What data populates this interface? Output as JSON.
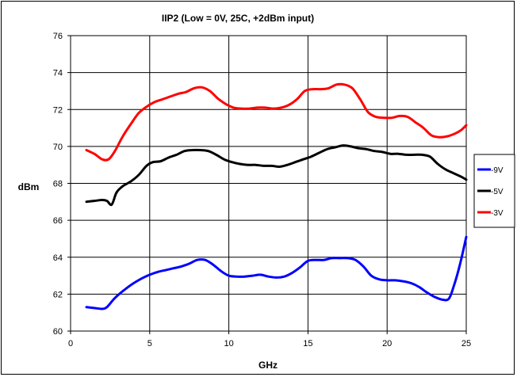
{
  "chart_data": {
    "type": "line",
    "title": "IIP2 (Low = 0V, 25C, +2dBm input)",
    "xlabel": "GHz",
    "ylabel": "dBm",
    "xlim": [
      0,
      25
    ],
    "ylim": [
      60,
      76
    ],
    "xticks": [
      0,
      5,
      10,
      15,
      20,
      25
    ],
    "yticks": [
      60,
      62,
      64,
      66,
      68,
      70,
      72,
      74,
      76
    ],
    "grid": true,
    "legend_position": "right",
    "series": [
      {
        "name": "-9V",
        "color": "#0000ff",
        "x": [
          1,
          1.5,
          2,
          2.3,
          2.7,
          3,
          3.5,
          4,
          4.5,
          5,
          5.5,
          6,
          6.5,
          7,
          7.5,
          8,
          8.5,
          9,
          9.5,
          10,
          10.5,
          11,
          11.5,
          12,
          12.5,
          13,
          13.5,
          14,
          14.5,
          15,
          15.5,
          16,
          16.5,
          17,
          17.5,
          18,
          18.5,
          19,
          19.5,
          20,
          20.5,
          21,
          21.5,
          22,
          22.5,
          23,
          23.5,
          23.9,
          24.2,
          24.6,
          25
        ],
        "values": [
          61.3,
          61.25,
          61.2,
          61.3,
          61.7,
          61.95,
          62.3,
          62.6,
          62.85,
          63.05,
          63.2,
          63.3,
          63.4,
          63.5,
          63.65,
          63.85,
          63.85,
          63.6,
          63.25,
          63.0,
          62.95,
          62.95,
          63.0,
          63.05,
          62.95,
          62.9,
          62.95,
          63.15,
          63.45,
          63.8,
          63.85,
          63.85,
          63.95,
          63.95,
          63.95,
          63.85,
          63.5,
          63.0,
          62.8,
          62.75,
          62.75,
          62.7,
          62.6,
          62.4,
          62.1,
          61.85,
          61.7,
          61.75,
          62.4,
          63.6,
          65.1
        ]
      },
      {
        "name": "-5V",
        "color": "#000000",
        "x": [
          1,
          1.5,
          2,
          2.3,
          2.6,
          2.9,
          3.3,
          3.8,
          4.3,
          4.8,
          5.2,
          5.7,
          6.2,
          6.7,
          7.2,
          7.7,
          8.2,
          8.7,
          9.2,
          9.7,
          10.2,
          10.7,
          11.2,
          11.7,
          12.2,
          12.7,
          13.2,
          13.7,
          14.2,
          14.7,
          15.2,
          15.7,
          16.2,
          16.7,
          17.2,
          17.7,
          18.2,
          18.7,
          19.2,
          19.7,
          20.2,
          20.7,
          21.2,
          21.7,
          22.2,
          22.7,
          23.2,
          23.7,
          24.2,
          24.7,
          25
        ],
        "values": [
          67.0,
          67.05,
          67.1,
          67.05,
          66.85,
          67.5,
          67.85,
          68.1,
          68.45,
          68.95,
          69.15,
          69.2,
          69.4,
          69.55,
          69.75,
          69.8,
          69.8,
          69.75,
          69.55,
          69.3,
          69.15,
          69.05,
          69.0,
          69.0,
          68.95,
          68.95,
          68.9,
          69.0,
          69.15,
          69.3,
          69.45,
          69.65,
          69.85,
          69.95,
          70.05,
          70.0,
          69.9,
          69.85,
          69.75,
          69.7,
          69.6,
          69.6,
          69.55,
          69.55,
          69.55,
          69.45,
          69.05,
          68.75,
          68.55,
          68.35,
          68.2
        ]
      },
      {
        "name": "-3V",
        "color": "#ff0000",
        "x": [
          1,
          1.5,
          2,
          2.4,
          2.8,
          3.3,
          3.8,
          4.3,
          4.8,
          5.3,
          5.8,
          6.3,
          6.8,
          7.3,
          7.8,
          8.3,
          8.8,
          9.3,
          9.8,
          10.3,
          10.8,
          11.3,
          11.8,
          12.3,
          12.8,
          13.3,
          13.8,
          14.3,
          14.8,
          15.3,
          15.8,
          16.3,
          16.8,
          17.3,
          17.8,
          18.3,
          18.8,
          19.3,
          19.8,
          20.3,
          20.8,
          21.3,
          21.8,
          22.3,
          22.8,
          23.3,
          23.8,
          24.3,
          24.7,
          25
        ],
        "values": [
          69.8,
          69.6,
          69.3,
          69.3,
          69.75,
          70.55,
          71.2,
          71.8,
          72.15,
          72.4,
          72.55,
          72.7,
          72.85,
          72.95,
          73.15,
          73.2,
          73.0,
          72.6,
          72.3,
          72.1,
          72.05,
          72.05,
          72.1,
          72.1,
          72.05,
          72.1,
          72.25,
          72.55,
          73.0,
          73.1,
          73.1,
          73.15,
          73.35,
          73.35,
          73.15,
          72.55,
          71.85,
          71.6,
          71.55,
          71.55,
          71.65,
          71.6,
          71.3,
          71.0,
          70.6,
          70.5,
          70.55,
          70.7,
          70.9,
          71.15
        ]
      }
    ]
  }
}
